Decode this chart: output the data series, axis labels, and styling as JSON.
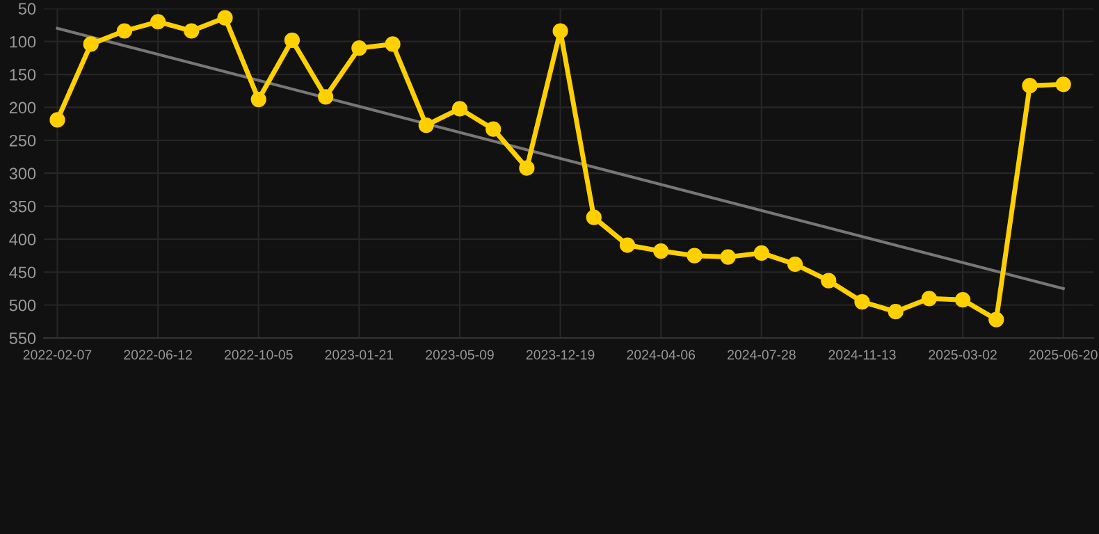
{
  "chart_data": {
    "type": "line",
    "categories": [
      "2022-02-07",
      null,
      null,
      "2022-06-12",
      null,
      null,
      "2022-10-05",
      null,
      null,
      "2023-01-21",
      null,
      null,
      "2023-05-09",
      null,
      null,
      "2023-12-19",
      null,
      null,
      "2024-04-06",
      null,
      null,
      "2024-07-28",
      null,
      null,
      "2024-11-13",
      null,
      null,
      "2025-03-02",
      null,
      null,
      "2025-06-20"
    ],
    "series": [
      {
        "color": "#ffd000",
        "marker": "circle",
        "values": [
          219,
          104,
          84,
          70,
          84,
          64,
          188,
          98,
          184,
          110,
          104,
          227,
          202,
          233,
          292,
          84,
          367,
          409,
          418,
          425,
          427,
          421,
          438,
          463,
          495,
          510,
          490,
          492,
          522,
          167,
          165
        ]
      },
      {
        "type": "line",
        "color": "#777777",
        "marker": "none",
        "values": [
          80,
          null,
          null,
          null,
          null,
          null,
          null,
          null,
          null,
          null,
          null,
          null,
          null,
          null,
          null,
          null,
          null,
          null,
          null,
          null,
          null,
          null,
          null,
          null,
          null,
          null,
          null,
          null,
          null,
          null,
          475
        ]
      }
    ],
    "ylim": [
      550,
      50
    ],
    "yticks": [
      50,
      100,
      150,
      200,
      250,
      300,
      350,
      400,
      450,
      500,
      550
    ],
    "grid": true
  }
}
